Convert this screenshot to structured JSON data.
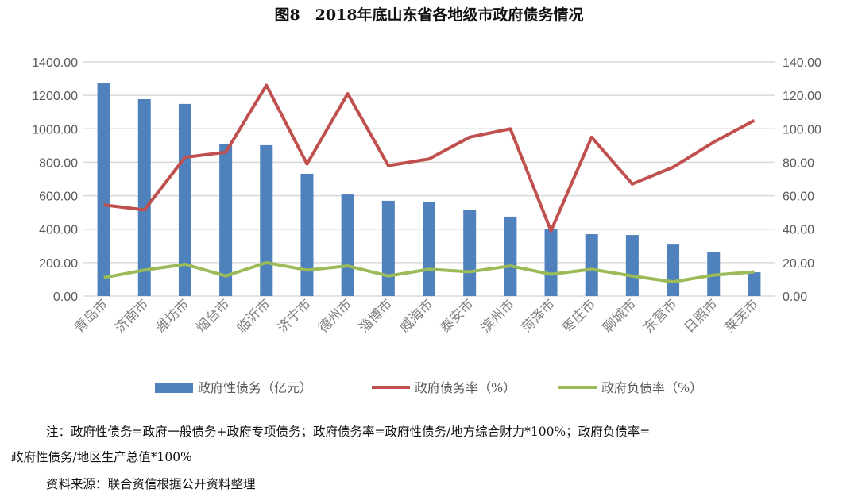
{
  "title": "图8　2018年底山东省各地级市政府债务情况",
  "chart_data": {
    "type": "bar+line",
    "categories": [
      "青岛市",
      "济南市",
      "潍坊市",
      "烟台市",
      "临沂市",
      "济宁市",
      "德州市",
      "淄博市",
      "威海市",
      "泰安市",
      "滨州市",
      "菏泽市",
      "枣庄市",
      "聊城市",
      "东营市",
      "日照市",
      "莱芜市"
    ],
    "left_axis": {
      "ylim": [
        0,
        1400
      ],
      "ticks": [
        "0.00",
        "200.00",
        "400.00",
        "600.00",
        "800.00",
        "1000.00",
        "1200.00",
        "1400.00"
      ]
    },
    "right_axis": {
      "ylim": [
        0,
        140
      ],
      "ticks": [
        "0.00",
        "20.00",
        "40.00",
        "60.00",
        "80.00",
        "100.00",
        "120.00",
        "140.00"
      ]
    },
    "grid": true,
    "legend_placement": "bottom",
    "series": [
      {
        "name": "政府性债务（亿元）",
        "type": "bar",
        "axis": "left",
        "color": "#4f81bd",
        "values": [
          1272,
          1177,
          1149,
          911,
          902,
          731,
          607,
          570,
          560,
          517,
          475,
          399,
          370,
          365,
          308,
          261,
          142
        ]
      },
      {
        "name": "政府债务率（%）",
        "type": "line",
        "axis": "right",
        "color": "#c0504d",
        "values": [
          54.5,
          51.5,
          83,
          86,
          126,
          79,
          121,
          78,
          82,
          95,
          100,
          39,
          95,
          67,
          77,
          92,
          105
        ]
      },
      {
        "name": "政府负债率（%）",
        "type": "line",
        "axis": "right",
        "color": "#9bbb59",
        "values": [
          11,
          15.5,
          19,
          12,
          20,
          15.5,
          18,
          12,
          16,
          14.5,
          18,
          13,
          16,
          12,
          8.5,
          12.5,
          14.5
        ]
      }
    ]
  },
  "notes": {
    "line1": "注：政府性债务=政府一般债务+政府专项债务；政府债务率=政府性债务/地方综合财力*100%；政府负债率=",
    "line2": "政府性债务/地区生产总值*100%",
    "source": "资料来源：联合资信根据公开资料整理"
  }
}
